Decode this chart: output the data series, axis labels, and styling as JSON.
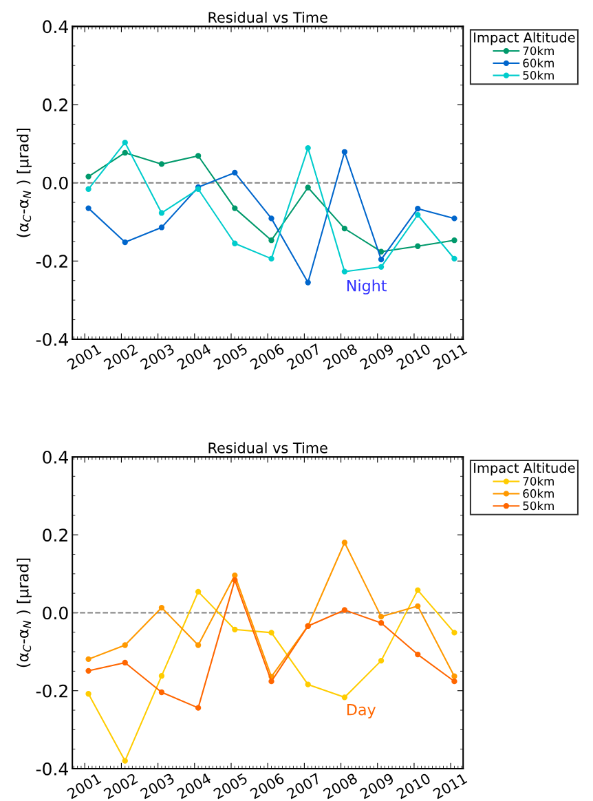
{
  "chart_data": [
    {
      "type": "line",
      "title": "Residual vs Time",
      "ylabel": "(α$_{C}$-α$_{N}$ ) [μrad]",
      "legend_title": "Impact Altitude",
      "legend": "top right",
      "marker": "circle",
      "line_style": "solid",
      "grid": false,
      "x": [
        2001.1,
        2002.1,
        2003.1,
        2004.1,
        2005.1,
        2006.1,
        2007.1,
        2008.1,
        2009.1,
        2010.1,
        2011.1
      ],
      "xlim": [
        2000.66,
        2011.34
      ],
      "xticks": [
        2001,
        2002,
        2003,
        2004,
        2005,
        2006,
        2007,
        2008,
        2009,
        2010,
        2011
      ],
      "ylim": [
        -0.4,
        0.4
      ],
      "yticks": [
        {
          "value": -0.4,
          "label": "-0.4"
        },
        {
          "value": -0.2,
          "label": "-0.2"
        },
        {
          "value": 0,
          "label": "0.0"
        },
        {
          "value": 0.2,
          "label": "0.2"
        },
        {
          "value": 0.4,
          "label": "0.4"
        }
      ],
      "ref_lines": [
        {
          "axis": "y",
          "value": 0,
          "color": "#808080",
          "line_style": "dashed"
        }
      ],
      "annotations": [
        "Night"
      ],
      "series": [
        {
          "name": "70km",
          "color": "#00996b",
          "values": [
            0.016,
            0.077,
            0.048,
            0.069,
            -0.065,
            -0.147,
            -0.012,
            -0.117,
            -0.176,
            -0.162,
            -0.147
          ]
        },
        {
          "name": "60km",
          "color": "#0066cc",
          "values": [
            -0.065,
            -0.152,
            -0.114,
            -0.011,
            0.026,
            -0.091,
            -0.255,
            0.079,
            -0.196,
            -0.066,
            -0.091
          ]
        },
        {
          "name": "50km",
          "color": "#00cccc",
          "values": [
            -0.016,
            0.103,
            -0.077,
            -0.016,
            -0.155,
            -0.194,
            0.089,
            -0.227,
            -0.215,
            -0.082,
            -0.194
          ]
        }
      ]
    },
    {
      "type": "line",
      "title": "Residual vs Time",
      "ylabel": "(α$_{C}$-α$_{N}$ ) [μrad]",
      "legend_title": "Impact Altitude",
      "legend": "top right",
      "marker": "circle",
      "line_style": "solid",
      "grid": false,
      "x": [
        2001.1,
        2002.1,
        2003.1,
        2004.1,
        2005.1,
        2006.1,
        2007.1,
        2008.1,
        2009.1,
        2010.1,
        2011.1
      ],
      "xlim": [
        2000.66,
        2011.34
      ],
      "xticks": [
        2001,
        2002,
        2003,
        2004,
        2005,
        2006,
        2007,
        2008,
        2009,
        2010,
        2011
      ],
      "ylim": [
        -0.4,
        0.4
      ],
      "yticks": [
        {
          "value": -0.4,
          "label": "-0.4"
        },
        {
          "value": -0.2,
          "label": "-0.2"
        },
        {
          "value": 0,
          "label": "0.0"
        },
        {
          "value": 0.2,
          "label": "0.2"
        },
        {
          "value": 0.4,
          "label": "0.4"
        }
      ],
      "ref_lines": [
        {
          "axis": "y",
          "value": 0,
          "color": "#808080",
          "line_style": "dashed"
        }
      ],
      "annotations": [
        "Day"
      ],
      "series": [
        {
          "name": "70km",
          "color": "#ffcc00",
          "values": [
            -0.208,
            -0.38,
            -0.162,
            0.054,
            -0.043,
            -0.051,
            -0.184,
            -0.217,
            -0.123,
            0.058,
            -0.051
          ]
        },
        {
          "name": "60km",
          "color": "#ff9900",
          "values": [
            -0.119,
            -0.083,
            0.013,
            -0.083,
            0.096,
            -0.164,
            -0.034,
            0.18,
            -0.01,
            0.017,
            -0.163
          ]
        },
        {
          "name": "50km",
          "color": "#ff6600",
          "values": [
            -0.149,
            -0.128,
            -0.204,
            -0.244,
            0.084,
            -0.176,
            -0.034,
            0.007,
            -0.026,
            -0.107,
            -0.176
          ]
        }
      ]
    }
  ]
}
